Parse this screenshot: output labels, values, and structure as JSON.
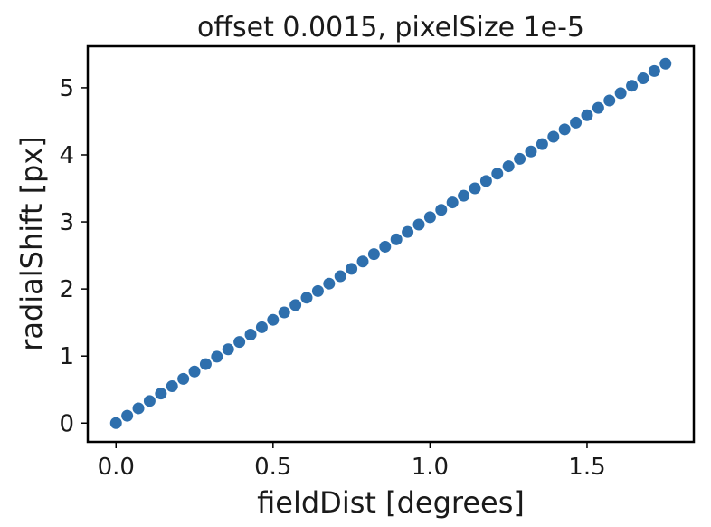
{
  "chart_data": {
    "type": "scatter",
    "title": "offset 0.0015, pixelSize 1e-5",
    "xlabel": "fieldDist [degrees]",
    "ylabel": "radialShift [px]",
    "xlim": [
      -0.09,
      1.84
    ],
    "ylim": [
      -0.28,
      5.62
    ],
    "xticks": [
      0.0,
      0.5,
      1.0,
      1.5
    ],
    "xtick_labels": [
      "0.0",
      "0.5",
      "1.0",
      "1.5"
    ],
    "yticks": [
      0,
      1,
      2,
      3,
      4,
      5
    ],
    "ytick_labels": [
      "0",
      "1",
      "2",
      "3",
      "4",
      "5"
    ],
    "grid": false,
    "marker_color": "#2e6fad",
    "series": [
      {
        "x": [
          0.0,
          0.0357,
          0.0714,
          0.1071,
          0.1429,
          0.1786,
          0.2143,
          0.25,
          0.2857,
          0.3214,
          0.3571,
          0.3929,
          0.4286,
          0.4643,
          0.5,
          0.5357,
          0.5714,
          0.6071,
          0.6429,
          0.6786,
          0.7143,
          0.75,
          0.7857,
          0.8214,
          0.8571,
          0.8929,
          0.9286,
          0.9643,
          1.0,
          1.0357,
          1.0714,
          1.1071,
          1.1429,
          1.1786,
          1.2143,
          1.25,
          1.2857,
          1.3214,
          1.3571,
          1.3929,
          1.4286,
          1.4643,
          1.5,
          1.5357,
          1.5714,
          1.6071,
          1.6429,
          1.6786,
          1.7143,
          1.75
        ],
        "y": [
          0.0,
          0.11,
          0.22,
          0.33,
          0.44,
          0.55,
          0.66,
          0.77,
          0.88,
          0.99,
          1.1,
          1.21,
          1.32,
          1.43,
          1.54,
          1.65,
          1.76,
          1.87,
          1.97,
          2.08,
          2.19,
          2.3,
          2.41,
          2.52,
          2.63,
          2.74,
          2.85,
          2.96,
          3.07,
          3.18,
          3.29,
          3.39,
          3.5,
          3.61,
          3.72,
          3.83,
          3.94,
          4.05,
          4.16,
          4.27,
          4.38,
          4.48,
          4.59,
          4.7,
          4.81,
          4.92,
          5.03,
          5.14,
          5.25,
          5.36
        ]
      }
    ]
  }
}
